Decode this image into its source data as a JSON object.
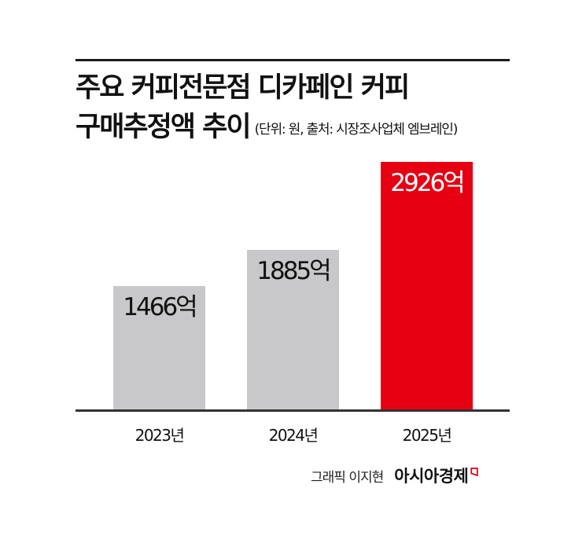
{
  "header": {
    "title_line1": "주요 커피전문점 디카페인 커피",
    "title_line2": "구매추정액 추이",
    "subtitle": "(단위: 원, 출처: 시장조사업체 엠브레인)"
  },
  "colors": {
    "bar_default": "#c8c8ca",
    "bar_highlight": "#e60012",
    "label_default": "#111111",
    "label_highlight": "#ffffff",
    "rule": "#1a1a1a"
  },
  "chart_data": {
    "type": "bar",
    "title": "주요 커피전문점 디카페인 커피 구매추정액 추이",
    "subtitle": "(단위: 원, 출처: 시장조사업체 엠브레인)",
    "categories": [
      "2023년",
      "2024년",
      "2025년"
    ],
    "values": [
      1466,
      1885,
      2926
    ],
    "value_labels": [
      "1466억",
      "1885억",
      "2926억"
    ],
    "unit": "억 원",
    "highlight_index": 2,
    "xlabel": "",
    "ylabel": "",
    "grid": false,
    "legend": null
  },
  "footer": {
    "credit": "그래픽 이지현",
    "brand": "아시아경제",
    "logo_icon": "red-outlined-trapezoid-mark"
  }
}
